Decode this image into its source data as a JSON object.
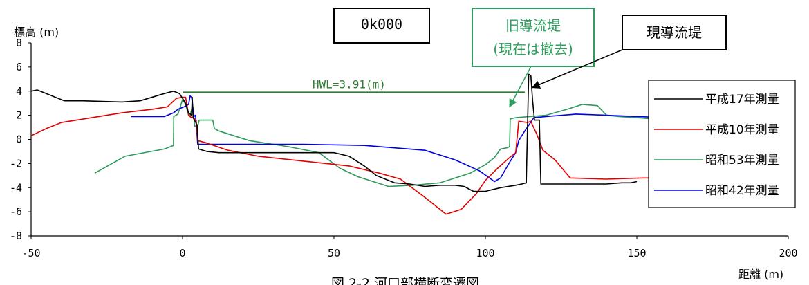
{
  "chart_data": {
    "type": "line",
    "section_label": "0k000",
    "ylabel": "標高 (m)",
    "xlabel": "距離 (m)",
    "caption": "図 2-2 河口部横断変遷図",
    "xlim": [
      -50,
      200
    ],
    "ylim": [
      -8,
      8
    ],
    "x_ticks": [
      -50,
      0,
      50,
      100,
      150,
      200
    ],
    "y_ticks": [
      -8,
      -6,
      -4,
      -2,
      0,
      2,
      4,
      6,
      8
    ],
    "grid": false,
    "legend_position": "right",
    "hwl": {
      "label": "HWL=3.91(m)",
      "value": 3.91,
      "x_from": 0,
      "x_to": 113,
      "color": "#2e7d32"
    },
    "annotations": [
      {
        "id": "old",
        "lines": [
          "旧導流堤",
          "(現在は撤去)"
        ],
        "color": "#2e9e5e",
        "target": [
          108,
          2.7
        ]
      },
      {
        "id": "current",
        "lines": [
          "現導流堤"
        ],
        "color": "#000000",
        "target": [
          115.5,
          4.3
        ]
      }
    ],
    "series": [
      {
        "name": "平成17年測量",
        "color": "#000000",
        "x": [
          -50,
          -48,
          -39,
          -33,
          -20,
          -14,
          -6,
          -3,
          -1,
          0,
          1,
          2,
          3,
          3.2,
          3.5,
          4.8,
          5.3,
          8,
          12,
          30,
          50,
          55,
          60,
          64,
          70,
          75,
          80,
          85,
          90,
          93,
          96,
          100,
          105,
          110,
          112,
          113.5,
          114.3,
          115,
          115.6,
          116.2,
          117.8,
          118.3,
          120,
          135,
          140,
          145,
          148,
          150
        ],
        "y": [
          4.0,
          4.1,
          3.2,
          3.2,
          3.1,
          3.2,
          3.8,
          4.0,
          3.8,
          3.4,
          3.0,
          2.2,
          2.0,
          3.5,
          1.8,
          1.2,
          -0.8,
          -1.0,
          -1.1,
          -1.1,
          -1.1,
          -1.4,
          -2.2,
          -3.0,
          -3.6,
          -3.7,
          -3.9,
          -3.8,
          -3.8,
          -3.9,
          -4.3,
          -4.3,
          -4.0,
          -3.8,
          -3.7,
          -3.6,
          5.4,
          5.3,
          3.2,
          1.6,
          1.6,
          -3.7,
          -3.7,
          -3.7,
          -3.7,
          -3.6,
          -3.6,
          -3.5
        ]
      },
      {
        "name": "平成10年測量",
        "color": "#e10000",
        "x": [
          -50,
          -45,
          -40,
          -30,
          -20,
          -10,
          -5,
          -2,
          0,
          1,
          2,
          3,
          3.5,
          4.5,
          5,
          8,
          15,
          25,
          40,
          55,
          65,
          72,
          80,
          87,
          92,
          97,
          100,
          104,
          108,
          110,
          111,
          114,
          115,
          117,
          119,
          123,
          128,
          140,
          152,
          160
        ],
        "y": [
          0.3,
          0.9,
          1.4,
          1.8,
          2.2,
          2.5,
          2.7,
          3.4,
          3.5,
          3.5,
          2.0,
          1.8,
          1.8,
          1.6,
          -0.1,
          -0.3,
          -0.9,
          -1.4,
          -1.8,
          -2.2,
          -2.8,
          -3.3,
          -4.8,
          -6.2,
          -5.8,
          -4.5,
          -3.4,
          -2.4,
          -1.5,
          -1.1,
          1.5,
          1.4,
          1.5,
          0.4,
          -0.9,
          -1.7,
          -3.2,
          -3.3,
          -3.2,
          -3.2
        ]
      },
      {
        "name": "昭和53年測量",
        "color": "#2e9a5a",
        "x": [
          -29,
          -19,
          -6,
          -3,
          -2.9,
          -1.5,
          0,
          1,
          2,
          2.4,
          3.3,
          3.7,
          4,
          5,
          5.5,
          10,
          10.5,
          12,
          22,
          35,
          45,
          52,
          58,
          68,
          76,
          85,
          95,
          100,
          103,
          105,
          107,
          108,
          108.2,
          110,
          120,
          127,
          132,
          137,
          140,
          144,
          150,
          160
        ],
        "y": [
          -2.8,
          -1.4,
          -0.8,
          -0.5,
          1.9,
          2.1,
          3.3,
          2.9,
          2.0,
          1.9,
          2.8,
          1.9,
          1.1,
          1.1,
          1.6,
          1.6,
          0.9,
          0.7,
          -0.1,
          -0.6,
          -1.1,
          -2.4,
          -3.1,
          -3.9,
          -3.8,
          -3.6,
          -2.8,
          -2.1,
          -1.5,
          -0.8,
          -0.7,
          -0.6,
          1.7,
          1.8,
          2.0,
          2.5,
          2.9,
          2.8,
          2.0,
          1.9,
          1.8,
          1.6
        ]
      },
      {
        "name": "昭和42年測量",
        "color": "#0000e0",
        "x": [
          -17,
          -8,
          -6,
          -3,
          -1.5,
          0.5,
          2,
          2.5,
          3,
          3.8,
          4.3,
          5,
          10,
          20,
          40,
          60,
          70,
          80,
          90,
          98,
          103,
          105,
          108,
          110,
          111,
          113,
          116,
          120,
          130,
          140,
          150,
          160
        ],
        "y": [
          1.9,
          1.9,
          1.9,
          2.2,
          2.5,
          2.7,
          2.9,
          3.6,
          3.5,
          1.9,
          2.0,
          -0.4,
          -0.4,
          -0.4,
          -0.4,
          -0.5,
          -0.7,
          -0.9,
          -1.7,
          -2.6,
          -3.5,
          -3.2,
          -1.9,
          -1.1,
          -0.1,
          0.7,
          1.8,
          1.9,
          2.1,
          2.0,
          1.9,
          1.8
        ]
      }
    ]
  }
}
